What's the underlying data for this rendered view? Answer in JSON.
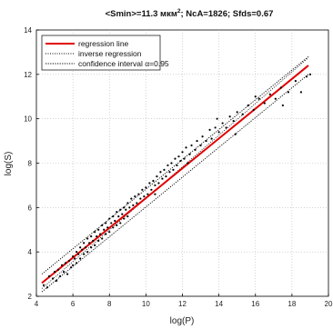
{
  "chart_data": {
    "type": "scatter",
    "title": {
      "prefix": "<Smin>=11.3 мкм",
      "superscript": "2",
      "suffix": ";  NcA=1826;  Sfds=0.67"
    },
    "xlabel": "log(P)",
    "ylabel": "log(S)",
    "xlim": [
      4,
      20
    ],
    "ylim": [
      2,
      14
    ],
    "xticks": [
      "4",
      "6",
      "8",
      "10",
      "12",
      "14",
      "16",
      "18",
      "20"
    ],
    "yticks": [
      "2",
      "4",
      "6",
      "8",
      "10",
      "12",
      "14"
    ],
    "grid": true,
    "legend": {
      "placement": "top-left",
      "entries": [
        {
          "label": "regression line",
          "style": "solid",
          "color": "#e00000"
        },
        {
          "label": "inverse regression",
          "style": "dotted",
          "color": "#000000"
        },
        {
          "label": "confidence interval α=0.95",
          "style": "dotted",
          "color": "#000000"
        }
      ]
    },
    "regression_line": {
      "x": [
        4.3,
        18.9
      ],
      "y": [
        2.6,
        12.4
      ]
    },
    "inverse_regression_line": {
      "x": [
        4.3,
        18.9
      ],
      "y": [
        2.35,
        12.75
      ]
    },
    "confidence_upper": {
      "x": [
        4.3,
        18.9
      ],
      "y": [
        3.0,
        12.8
      ]
    },
    "confidence_lower": {
      "x": [
        4.3,
        18.9
      ],
      "y": [
        2.2,
        12.0
      ]
    },
    "points": [
      [
        4.4,
        2.5
      ],
      [
        4.6,
        2.4
      ],
      [
        4.7,
        2.9
      ],
      [
        4.9,
        2.8
      ],
      [
        5.0,
        3.1
      ],
      [
        5.1,
        2.7
      ],
      [
        5.2,
        3.2
      ],
      [
        5.3,
        2.9
      ],
      [
        5.4,
        3.4
      ],
      [
        5.5,
        3.1
      ],
      [
        5.6,
        3.5
      ],
      [
        5.7,
        3.0
      ],
      [
        5.8,
        3.6
      ],
      [
        5.9,
        3.3
      ],
      [
        6.0,
        3.8
      ],
      [
        6.0,
        3.4
      ],
      [
        6.1,
        3.7
      ],
      [
        6.2,
        4.0
      ],
      [
        6.2,
        3.5
      ],
      [
        6.3,
        3.9
      ],
      [
        6.4,
        4.2
      ],
      [
        6.4,
        3.7
      ],
      [
        6.5,
        4.1
      ],
      [
        6.6,
        4.4
      ],
      [
        6.6,
        3.9
      ],
      [
        6.7,
        4.2
      ],
      [
        6.8,
        4.6
      ],
      [
        6.8,
        4.0
      ],
      [
        6.9,
        4.4
      ],
      [
        7.0,
        4.7
      ],
      [
        7.0,
        4.2
      ],
      [
        7.1,
        4.5
      ],
      [
        7.2,
        4.9
      ],
      [
        7.2,
        4.3
      ],
      [
        7.3,
        4.7
      ],
      [
        7.4,
        5.0
      ],
      [
        7.4,
        4.5
      ],
      [
        7.5,
        4.8
      ],
      [
        7.6,
        5.2
      ],
      [
        7.6,
        4.6
      ],
      [
        7.7,
        5.0
      ],
      [
        7.8,
        5.3
      ],
      [
        7.8,
        4.8
      ],
      [
        7.9,
        5.1
      ],
      [
        8.0,
        5.5
      ],
      [
        8.0,
        4.9
      ],
      [
        8.1,
        5.3
      ],
      [
        8.2,
        5.6
      ],
      [
        8.2,
        5.1
      ],
      [
        8.3,
        5.4
      ],
      [
        8.4,
        5.8
      ],
      [
        8.4,
        5.2
      ],
      [
        8.5,
        5.6
      ],
      [
        8.6,
        5.9
      ],
      [
        8.6,
        5.3
      ],
      [
        8.7,
        5.7
      ],
      [
        8.8,
        6.0
      ],
      [
        8.8,
        5.5
      ],
      [
        8.9,
        5.9
      ],
      [
        9.0,
        6.2
      ],
      [
        9.0,
        5.6
      ],
      [
        9.1,
        6.0
      ],
      [
        9.2,
        6.4
      ],
      [
        9.3,
        6.1
      ],
      [
        9.4,
        6.5
      ],
      [
        9.5,
        6.2
      ],
      [
        9.6,
        6.6
      ],
      [
        9.7,
        6.4
      ],
      [
        9.8,
        6.8
      ],
      [
        9.9,
        6.5
      ],
      [
        10.0,
        6.9
      ],
      [
        10.1,
        6.6
      ],
      [
        10.2,
        7.1
      ],
      [
        10.3,
        6.8
      ],
      [
        10.4,
        7.2
      ],
      [
        10.5,
        7.0
      ],
      [
        10.6,
        7.4
      ],
      [
        10.7,
        7.1
      ],
      [
        10.8,
        7.6
      ],
      [
        10.9,
        7.3
      ],
      [
        11.0,
        7.7
      ],
      [
        11.1,
        7.4
      ],
      [
        11.2,
        7.9
      ],
      [
        11.3,
        7.6
      ],
      [
        11.4,
        8.0
      ],
      [
        11.5,
        7.7
      ],
      [
        11.6,
        8.2
      ],
      [
        11.7,
        7.9
      ],
      [
        11.8,
        8.3
      ],
      [
        11.9,
        8.1
      ],
      [
        12.0,
        8.5
      ],
      [
        12.1,
        8.2
      ],
      [
        12.2,
        8.7
      ],
      [
        12.4,
        8.4
      ],
      [
        12.5,
        8.8
      ],
      [
        12.7,
        8.6
      ],
      [
        12.8,
        9.0
      ],
      [
        13.0,
        8.8
      ],
      [
        13.1,
        9.2
      ],
      [
        13.3,
        9.0
      ],
      [
        13.5,
        9.5
      ],
      [
        13.6,
        9.1
      ],
      [
        13.8,
        9.6
      ],
      [
        14.0,
        9.4
      ],
      [
        14.2,
        9.8
      ],
      [
        14.4,
        9.6
      ],
      [
        14.6,
        10.1
      ],
      [
        14.8,
        9.9
      ],
      [
        15.0,
        10.3
      ],
      [
        15.3,
        10.2
      ],
      [
        15.6,
        10.6
      ],
      [
        15.9,
        10.4
      ],
      [
        16.2,
        10.9
      ],
      [
        16.5,
        10.7
      ],
      [
        16.8,
        11.1
      ],
      [
        17.1,
        10.9
      ],
      [
        17.4,
        11.4
      ],
      [
        17.8,
        11.2
      ],
      [
        18.2,
        11.7
      ],
      [
        18.5,
        11.2
      ],
      [
        18.8,
        11.9
      ],
      [
        19.0,
        12.0
      ],
      [
        14.9,
        9.3
      ],
      [
        13.9,
        10.0
      ],
      [
        12.3,
        8.0
      ],
      [
        16.0,
        11.0
      ],
      [
        17.5,
        10.6
      ],
      [
        10.5,
        6.6
      ]
    ]
  }
}
